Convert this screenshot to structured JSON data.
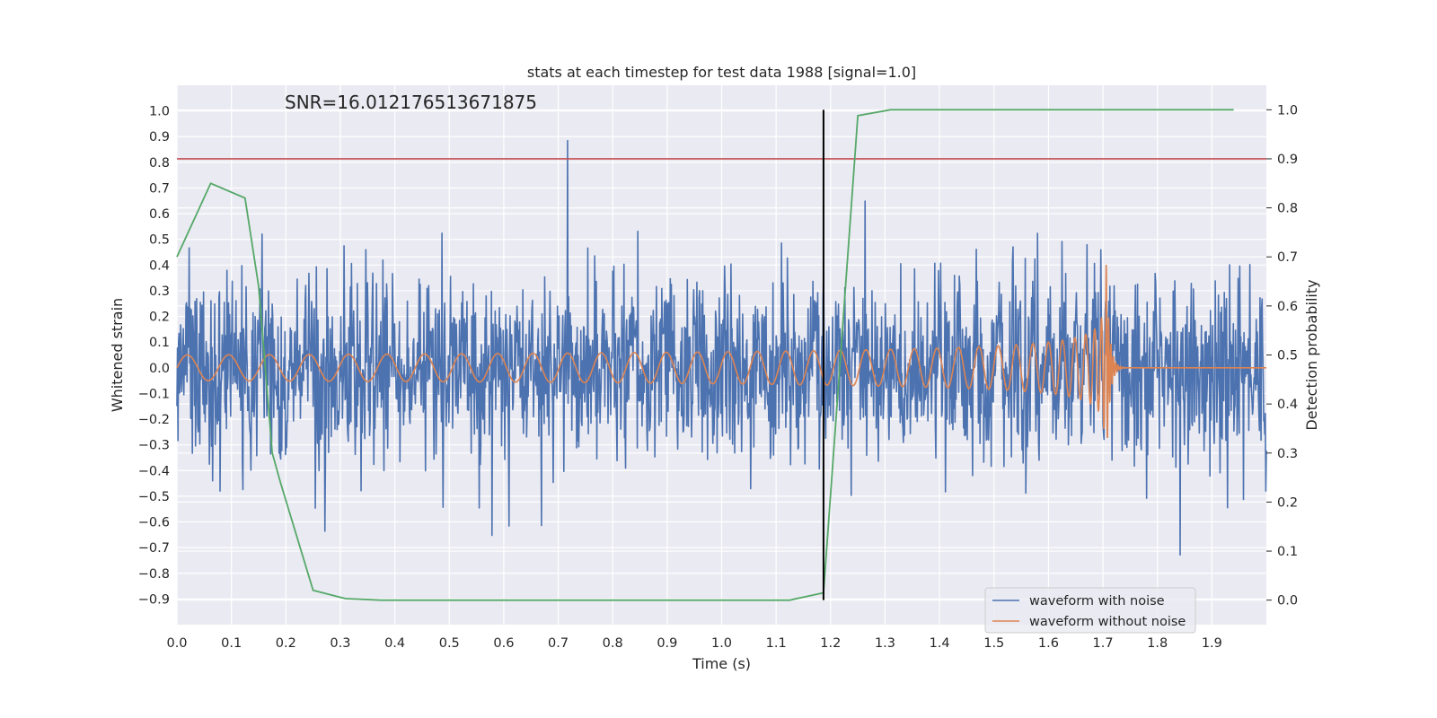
{
  "chart_data": {
    "type": "line",
    "title": "stats at each timestep for test data 1988 [signal=1.0]",
    "xlabel": "Time (s)",
    "ylabel": "Whitened strain",
    "y2label": "Detection probability",
    "annotation": "SNR=16.012176513671875",
    "xlim": [
      0.0,
      2.0
    ],
    "ylim": [
      -1.0,
      1.1
    ],
    "y2lim": [
      -0.05,
      1.05
    ],
    "x_ticks": [
      "0.0",
      "0.1",
      "0.2",
      "0.3",
      "0.4",
      "0.5",
      "0.6",
      "0.7",
      "0.8",
      "0.9",
      "1.0",
      "1.1",
      "1.2",
      "1.3",
      "1.4",
      "1.5",
      "1.6",
      "1.7",
      "1.8",
      "1.9"
    ],
    "y_ticks": [
      "1.0",
      "0.9",
      "0.8",
      "0.7",
      "0.6",
      "0.5",
      "0.4",
      "0.3",
      "0.2",
      "0.1",
      "0.0",
      "−0.1",
      "−0.2",
      "−0.3",
      "−0.4",
      "−0.5",
      "−0.6",
      "−0.7",
      "−0.8",
      "−0.9"
    ],
    "y2_ticks": [
      "1.0",
      "0.9",
      "0.8",
      "0.7",
      "0.6",
      "0.5",
      "0.4",
      "0.3",
      "0.2",
      "0.1",
      "0.0"
    ],
    "grid": true,
    "legend_position": "lower-right",
    "series": [
      {
        "name": "waveform with noise",
        "color": "#4c72b0",
        "axis": "left",
        "kind": "noise",
        "summary": {
          "samples": 2048,
          "x_start": 0.0,
          "x_end": 2.0,
          "approx_range": [
            -0.85,
            1.0
          ]
        }
      },
      {
        "name": "waveform without noise",
        "color": "#dd8452",
        "axis": "left",
        "kind": "chirp",
        "summary": {
          "x_start": 0.0,
          "x_end": 2.0,
          "merger_time": 1.705,
          "early_amplitude": 0.05,
          "peak_amplitude": 0.48
        }
      }
    ],
    "probability_series": {
      "axis": "right",
      "color": "#55a868",
      "points": [
        [
          0.0,
          0.7
        ],
        [
          0.062,
          0.85
        ],
        [
          0.125,
          0.82
        ],
        [
          0.15,
          0.64
        ],
        [
          0.175,
          0.3
        ],
        [
          0.19,
          0.24
        ],
        [
          0.25,
          0.02
        ],
        [
          0.31,
          0.003
        ],
        [
          0.375,
          0.0
        ],
        [
          1.125,
          0.0
        ],
        [
          1.187,
          0.015
        ],
        [
          1.25,
          0.988
        ],
        [
          1.31,
          1.0
        ],
        [
          1.94,
          1.0
        ]
      ]
    },
    "threshold": {
      "axis": "right",
      "value": 0.9,
      "color": "#c44e52"
    },
    "marker_line": {
      "x": 1.187,
      "y2_from": 0.0,
      "y2_to": 1.0,
      "color": "#000000"
    }
  }
}
